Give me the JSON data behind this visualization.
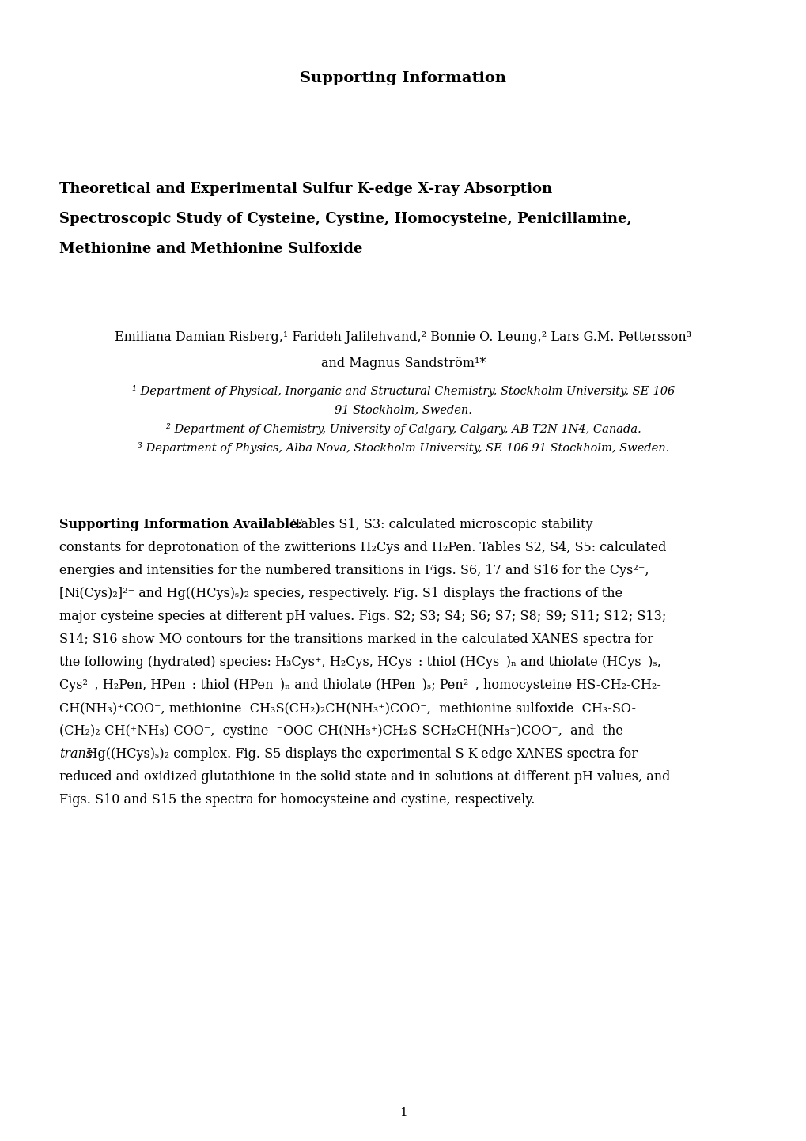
{
  "background_color": "#ffffff",
  "page_title": "Supporting Information",
  "paper_title_line1": "Theoretical and Experimental Sulfur K-edge X-ray Absorption",
  "paper_title_line2": "Spectroscopic Study of Cysteine, Cystine, Homocysteine, Penicillamine,",
  "paper_title_line3": "Methionine and Methionine Sulfoxide",
  "authors_line1": "Emiliana Damian Risberg,¹ Farideh Jalilehvand,² Bonnie O. Leung,² Lars G.M. Pettersson³",
  "authors_line2": "and Magnus Sandström¹*",
  "affil1": "¹ Department of Physical, Inorganic and Structural Chemistry, Stockholm University, SE-106",
  "affil1b": "91 Stockholm, Sweden.",
  "affil2": "² Department of Chemistry, University of Calgary, Calgary, AB T2N 1N4, Canada.",
  "affil3": "³ Department of Physics, Alba Nova, Stockholm University, SE-106 91 Stockholm, Sweden.",
  "body_line0_bold": "Supporting Information Available:",
  "body_line0_normal": " Tables S1, S3: calculated microscopic stability",
  "body_lines": [
    "constants for deprotonation of the zwitterions H₂Cys and H₂Pen. Tables S2, S4, S5: calculated",
    "energies and intensities for the numbered transitions in Figs. S6, 17 and S16 for the Cys²⁻,",
    "[Ni(Cys)₂]²⁻ and Hg((HCys)ₛ)₂ species, respectively. Fig. S1 displays the fractions of the",
    "major cysteine species at different pH values. Figs. S2; S3; S4; S6; S7; S8; S9; S11; S12; S13;",
    "S14; S16 show MO contours for the transitions marked in the calculated XANES spectra for",
    "the following (hydrated) species: H₃Cys⁺, H₂Cys, HCys⁻: thiol (HCys⁻)ₙ and thiolate (HCys⁻)ₛ,",
    "Cys²⁻, H₂Pen, HPen⁻: thiol (HPen⁻)ₙ and thiolate (HPen⁻)ₛ; Pen²⁻, homocysteine HS-CH₂-CH₂-",
    "CH(NH₃)⁺COO⁻, methionine  CH₃S(CH₂)₂CH(NH₃⁺)COO⁻,  methionine sulfoxide  CH₃-SO-",
    "(CH₂)₂-CH(⁺NH₃)-COO⁻,  cystine  ⁻OOC-CH(NH₃⁺)CH₂S-SCH₂CH(NH₃⁺)COO⁻,  and  the"
  ],
  "body_italic_word": "trans",
  "body_after_italic": "-Hg((HCys)ₛ)₂ complex. Fig. S5 displays the experimental S K-edge XANES spectra for",
  "body_final_lines": [
    "reduced and oxidized glutathione in the solid state and in solutions at different pH values, and",
    "Figs. S10 and S15 the spectra for homocysteine and cystine, respectively."
  ],
  "page_number": "1",
  "title_fontsize": 14,
  "paper_title_fontsize": 13,
  "author_fontsize": 11.5,
  "affil_fontsize": 10.5,
  "body_fontsize": 11.5
}
